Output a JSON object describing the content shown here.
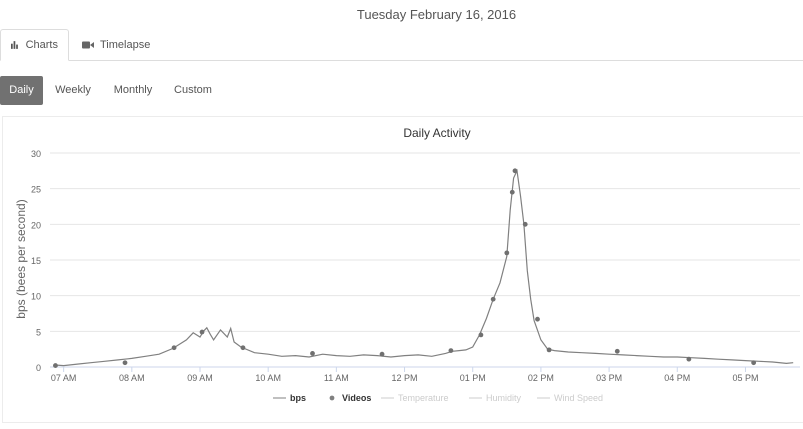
{
  "header": {
    "date": "Tuesday February 16, 2016"
  },
  "tabs": [
    {
      "label": "Charts",
      "icon": "bar-chart-icon",
      "active": true
    },
    {
      "label": "Timelapse",
      "icon": "video-camera-icon",
      "active": false
    }
  ],
  "ranges": [
    {
      "label": "Daily",
      "active": true
    },
    {
      "label": "Weekly",
      "active": false
    },
    {
      "label": "Monthly",
      "active": false
    },
    {
      "label": "Custom",
      "active": false
    }
  ],
  "colors": {
    "active_pill": "#717171",
    "series": "#808080",
    "legend_disabled": "#cccccc"
  },
  "chart_data": {
    "type": "line",
    "title": "Daily Activity",
    "ylabel": "bps (bees per second)",
    "xlabel": "",
    "ylim": [
      0,
      30
    ],
    "yticks": [
      0,
      5,
      10,
      15,
      20,
      25,
      30
    ],
    "xticks": [
      "07 AM",
      "08 AM",
      "09 AM",
      "10 AM",
      "11 AM",
      "12 PM",
      "01 PM",
      "02 PM",
      "03 PM",
      "04 PM",
      "05 PM"
    ],
    "xlim_hours": [
      6.8,
      17.8
    ],
    "grid": true,
    "legend_position": "bottom-center",
    "legend": [
      {
        "name": "bps",
        "marker": "line",
        "enabled": true
      },
      {
        "name": "Videos",
        "marker": "dot",
        "enabled": true
      },
      {
        "name": "Temperature",
        "marker": "line",
        "enabled": false
      },
      {
        "name": "Humidity",
        "marker": "line",
        "enabled": false
      },
      {
        "name": "Wind Speed",
        "marker": "line",
        "enabled": false
      }
    ],
    "series": [
      {
        "name": "bps",
        "x_hours": [
          6.85,
          7.0,
          7.2,
          7.4,
          7.6,
          7.8,
          8.0,
          8.2,
          8.4,
          8.6,
          8.7,
          8.8,
          8.9,
          9.0,
          9.05,
          9.1,
          9.15,
          9.2,
          9.3,
          9.4,
          9.45,
          9.5,
          9.6,
          9.8,
          10.0,
          10.2,
          10.4,
          10.6,
          10.8,
          11.0,
          11.2,
          11.4,
          11.6,
          11.8,
          12.0,
          12.2,
          12.4,
          12.6,
          12.7,
          12.8,
          12.9,
          13.0,
          13.1,
          13.2,
          13.3,
          13.4,
          13.5,
          13.55,
          13.6,
          13.65,
          13.7,
          13.75,
          13.8,
          13.85,
          13.9,
          14.0,
          14.1,
          14.2,
          14.4,
          14.6,
          14.8,
          15.0,
          15.2,
          15.4,
          15.6,
          15.8,
          16.0,
          16.2,
          16.4,
          16.6,
          16.8,
          17.0,
          17.2,
          17.4,
          17.6,
          17.7
        ],
        "values": [
          0.3,
          0.2,
          0.4,
          0.6,
          0.8,
          1.0,
          1.2,
          1.5,
          1.8,
          2.6,
          3.2,
          3.8,
          4.8,
          4.2,
          5.0,
          5.5,
          4.6,
          3.8,
          5.2,
          4.2,
          5.4,
          3.5,
          2.8,
          2.0,
          1.8,
          1.5,
          1.6,
          1.4,
          1.8,
          1.6,
          1.5,
          1.7,
          1.6,
          1.4,
          1.6,
          1.7,
          1.5,
          1.9,
          2.2,
          2.3,
          2.4,
          2.8,
          4.5,
          6.8,
          9.5,
          11.8,
          15.5,
          22.0,
          26.5,
          27.5,
          24.0,
          20.0,
          13.5,
          9.5,
          6.5,
          3.8,
          2.5,
          2.3,
          2.1,
          2.0,
          1.9,
          1.8,
          1.7,
          1.6,
          1.5,
          1.4,
          1.4,
          1.3,
          1.2,
          1.1,
          1.0,
          0.9,
          0.8,
          0.7,
          0.5,
          0.6
        ]
      },
      {
        "name": "Videos",
        "x_hours": [
          6.88,
          7.9,
          8.62,
          9.03,
          9.63,
          10.65,
          11.67,
          12.68,
          13.12,
          13.3,
          13.5,
          13.58,
          13.62,
          13.77,
          13.95,
          14.12,
          15.12,
          16.17,
          17.12
        ],
        "values": [
          0.2,
          0.6,
          2.7,
          4.9,
          2.7,
          1.9,
          1.8,
          2.3,
          4.5,
          9.5,
          16.0,
          24.5,
          27.5,
          20.0,
          6.7,
          2.4,
          2.2,
          1.1,
          0.6
        ]
      }
    ]
  }
}
